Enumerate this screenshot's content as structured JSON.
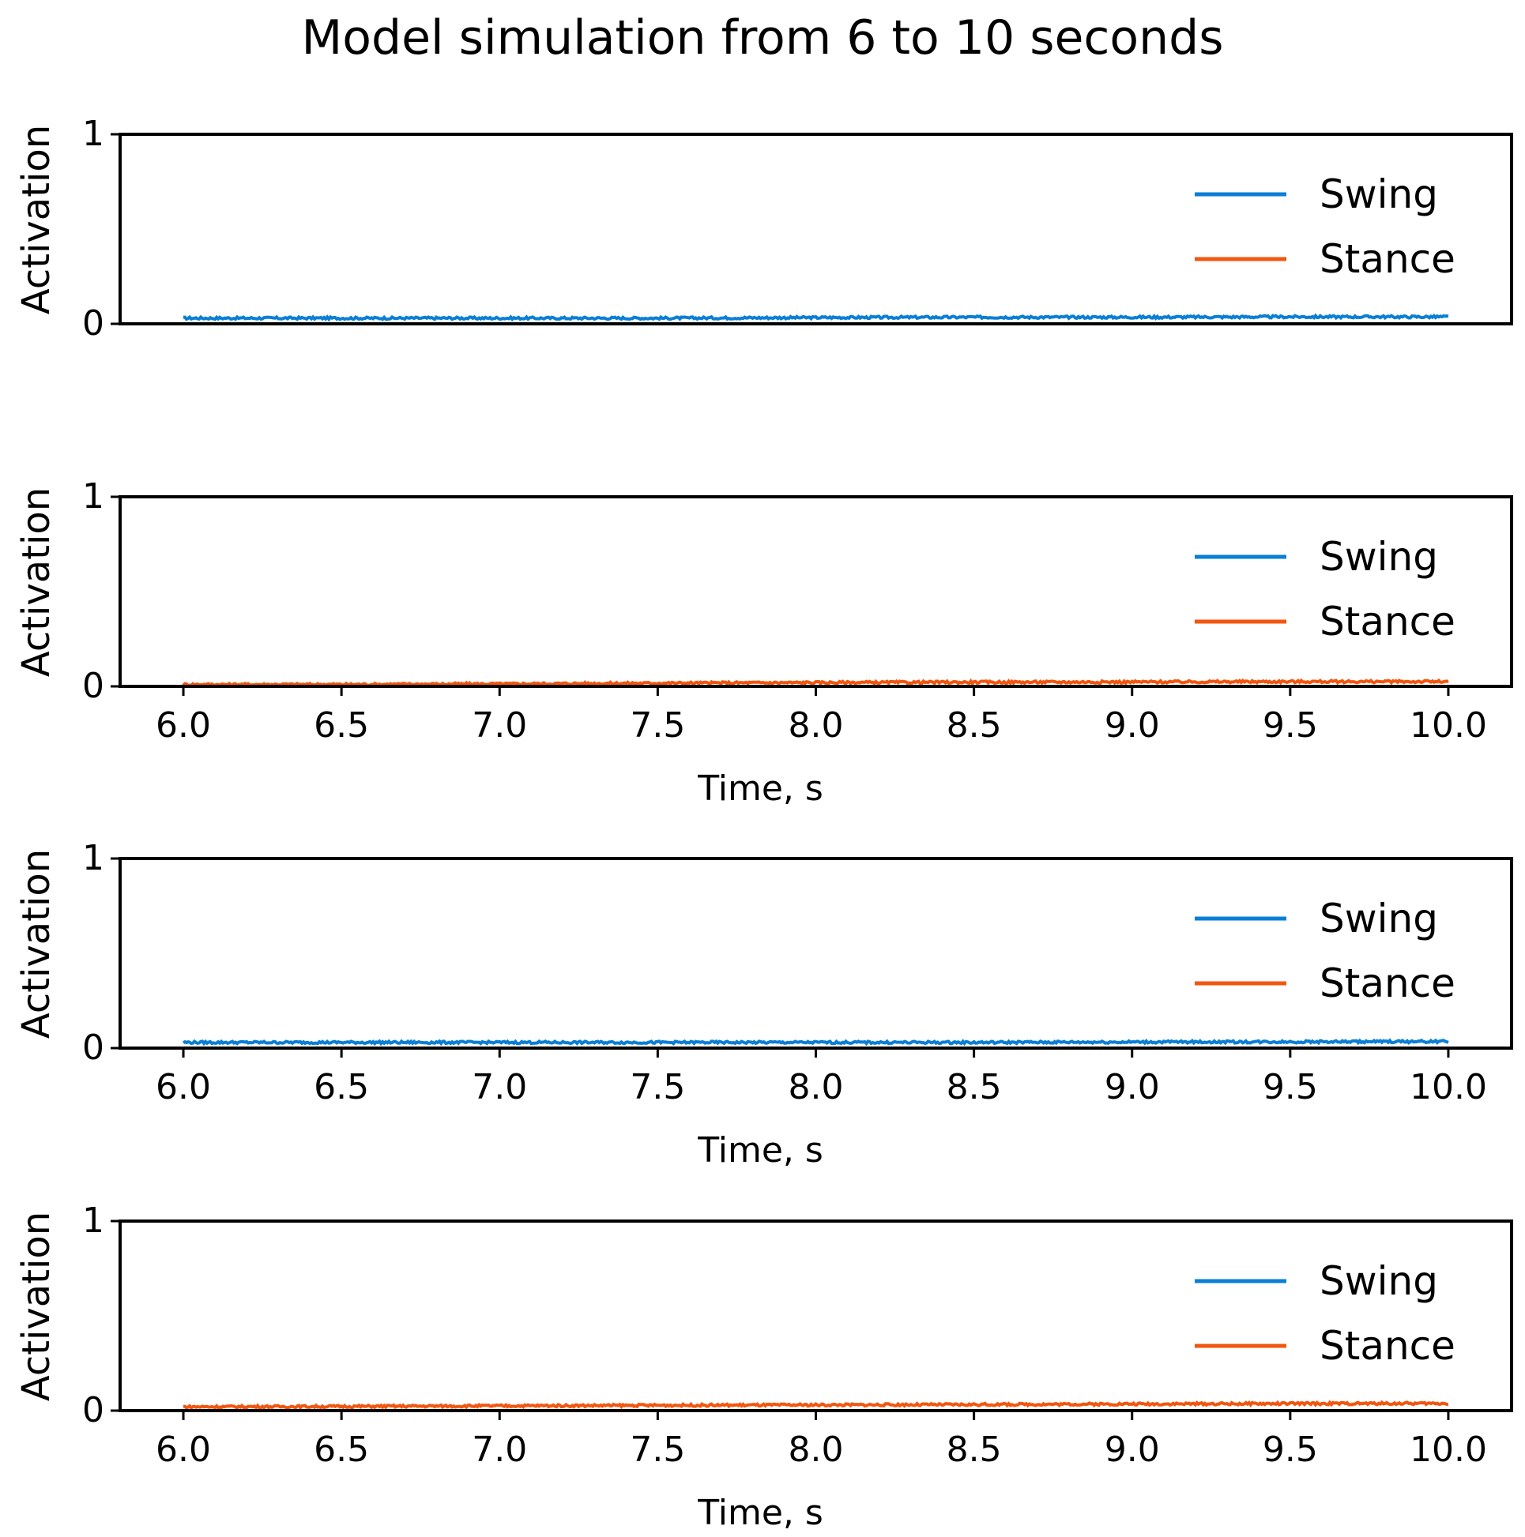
{
  "figure": {
    "title": "Model simulation from 6 to 10 seconds"
  },
  "colors": {
    "Swing": "#0a7fd6",
    "Stance": "#f2560f",
    "axes": "#000000",
    "background": "#ffffff"
  },
  "chart_data": [
    {
      "type": "line",
      "title": "",
      "xlabel": "",
      "ylabel": "Activation",
      "xlim": [
        5.8,
        10.2
      ],
      "ylim": [
        0,
        1
      ],
      "yticks": [
        "0",
        "1"
      ],
      "xticks_visible": false,
      "legend": {
        "placement": "top-right",
        "entries": [
          "Swing",
          "Stance"
        ]
      },
      "grid": false,
      "series": [
        {
          "name": "Swing",
          "x": [
            6.0,
            6.5,
            7.0,
            7.5,
            8.0,
            8.5,
            9.0,
            9.5,
            10.0
          ],
          "y": [
            0.03,
            0.03,
            0.03,
            0.03,
            0.033,
            0.035,
            0.035,
            0.037,
            0.037
          ]
        }
      ]
    },
    {
      "type": "line",
      "title": "",
      "xlabel": "Time, s",
      "ylabel": "Activation",
      "xlim": [
        5.8,
        10.2
      ],
      "ylim": [
        0,
        1
      ],
      "yticks": [
        "0",
        "1"
      ],
      "xticks": [
        "6.0",
        "6.5",
        "7.0",
        "7.5",
        "8.0",
        "8.5",
        "9.0",
        "9.5",
        "10.0"
      ],
      "legend": {
        "placement": "top-right",
        "entries": [
          "Swing",
          "Stance"
        ]
      },
      "grid": false,
      "series": [
        {
          "name": "Stance",
          "x": [
            6.0,
            6.5,
            7.0,
            7.5,
            8.0,
            8.5,
            9.0,
            9.5,
            10.0
          ],
          "y": [
            0.01,
            0.01,
            0.013,
            0.017,
            0.02,
            0.022,
            0.023,
            0.025,
            0.025
          ]
        }
      ]
    },
    {
      "type": "line",
      "title": "",
      "xlabel": "Time, s",
      "ylabel": "Activation",
      "xlim": [
        5.8,
        10.2
      ],
      "ylim": [
        0,
        1
      ],
      "yticks": [
        "0",
        "1"
      ],
      "xticks": [
        "6.0",
        "6.5",
        "7.0",
        "7.5",
        "8.0",
        "8.5",
        "9.0",
        "9.5",
        "10.0"
      ],
      "legend": {
        "placement": "top-right",
        "entries": [
          "Swing",
          "Stance"
        ]
      },
      "grid": false,
      "series": [
        {
          "name": "Swing",
          "x": [
            6.0,
            6.5,
            7.0,
            7.5,
            8.0,
            8.5,
            9.0,
            9.5,
            10.0
          ],
          "y": [
            0.03,
            0.03,
            0.03,
            0.03,
            0.03,
            0.03,
            0.032,
            0.033,
            0.035
          ]
        }
      ]
    },
    {
      "type": "line",
      "title": "",
      "xlabel": "Time, s",
      "ylabel": "Activation",
      "xlim": [
        5.8,
        10.2
      ],
      "ylim": [
        0,
        1
      ],
      "yticks": [
        "0",
        "1"
      ],
      "xticks": [
        "6.0",
        "6.5",
        "7.0",
        "7.5",
        "8.0",
        "8.5",
        "9.0",
        "9.5",
        "10.0"
      ],
      "legend": {
        "placement": "top-right",
        "entries": [
          "Swing",
          "Stance"
        ]
      },
      "grid": false,
      "series": [
        {
          "name": "Stance",
          "x": [
            6.0,
            6.5,
            7.0,
            7.5,
            8.0,
            8.5,
            9.0,
            9.5,
            10.0
          ],
          "y": [
            0.02,
            0.022,
            0.025,
            0.028,
            0.03,
            0.032,
            0.035,
            0.037,
            0.038
          ]
        }
      ]
    }
  ]
}
